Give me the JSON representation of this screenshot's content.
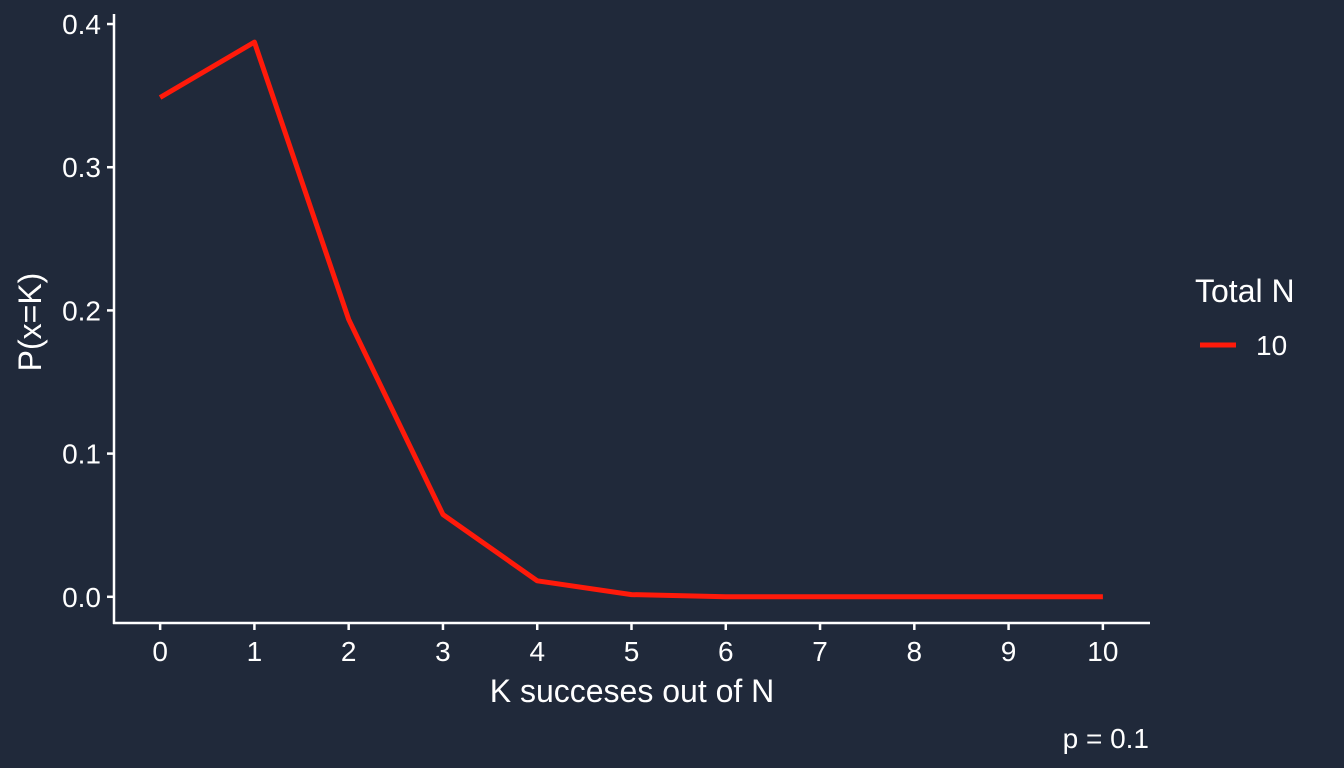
{
  "chart_data": {
    "type": "line",
    "title": "",
    "xlabel": "K succeses out of N",
    "ylabel": "P(x=K)",
    "x": [
      0,
      1,
      2,
      3,
      4,
      5,
      6,
      7,
      8,
      9,
      10
    ],
    "xlim": [
      -0.5,
      10.5
    ],
    "ylim": [
      -0.019,
      0.407
    ],
    "x_ticks": [
      "0",
      "1",
      "2",
      "3",
      "4",
      "5",
      "6",
      "7",
      "8",
      "9",
      "10"
    ],
    "y_ticks": [
      "0.0",
      "0.1",
      "0.2",
      "0.3",
      "0.4"
    ],
    "y_tick_values": [
      0.0,
      0.1,
      0.2,
      0.3,
      0.4
    ],
    "series": [
      {
        "name": "10",
        "color": "#ff1a0a",
        "values": [
          0.3487,
          0.3874,
          0.1937,
          0.0574,
          0.0112,
          0.0015,
          0.0001,
          0.0,
          0.0,
          0.0,
          0.0
        ]
      }
    ],
    "legend": {
      "title": "Total N",
      "position": "right"
    },
    "caption": "p = 0.1",
    "grid": false
  },
  "colors": {
    "background": "#20293a",
    "axis": "#ffffff",
    "text": "#ffffff"
  }
}
